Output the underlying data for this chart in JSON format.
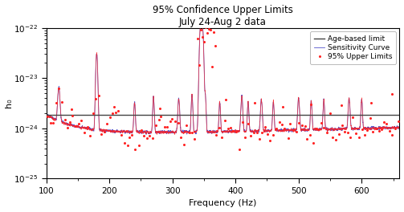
{
  "title_line1": "95% Confidence Upper Limits",
  "title_line2": "July 24-Aug 2 data",
  "xlabel": "Frequency (Hz)",
  "ylabel": "h₀",
  "xlim": [
    100,
    660
  ],
  "ylim_log": [
    -25,
    -22
  ],
  "age_based_limit": 1.85e-24,
  "legend_entries": [
    "Age-based limit",
    "Sensitivity Curve",
    "95% Upper Limits"
  ],
  "age_based_color": "#444444",
  "sensitivity_color": "#5555cc",
  "upper_limits_color": "#ff2222",
  "sensitivity_linewidth": 0.6,
  "age_linewidth": 1.0
}
